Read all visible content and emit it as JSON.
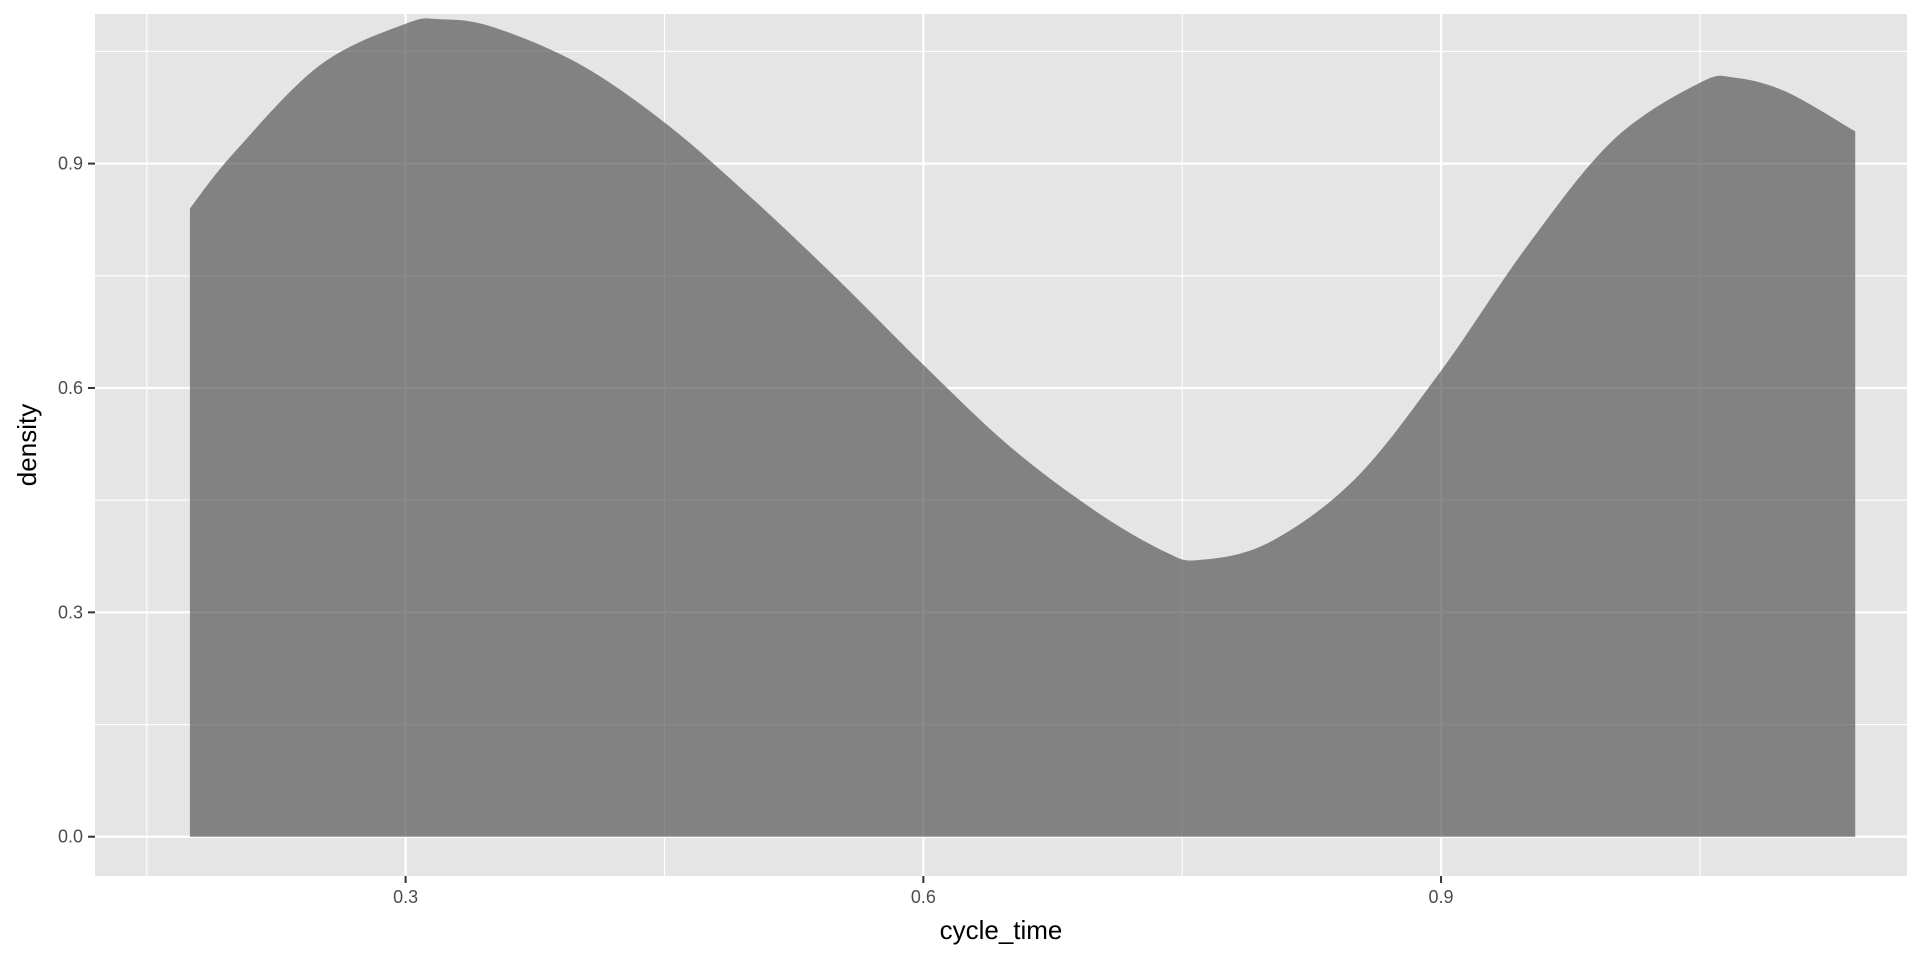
{
  "chart_data": {
    "type": "area",
    "geom": "density",
    "xlabel": "cycle_time",
    "ylabel": "density",
    "xlim": [
      0.12,
      1.17
    ],
    "ylim": [
      -0.0525,
      1.1
    ],
    "x_ticks": [
      0.3,
      0.6,
      0.9
    ],
    "x_tick_labels": [
      "0.3",
      "0.6",
      "0.9"
    ],
    "x_minor_ticks": [
      0.15,
      0.45,
      0.75,
      1.05
    ],
    "y_ticks": [
      0.0,
      0.3,
      0.6,
      0.9
    ],
    "y_tick_labels": [
      "0.0",
      "0.3",
      "0.6",
      "0.9"
    ],
    "y_minor_ticks": [
      0.15,
      0.45,
      0.75,
      1.05
    ],
    "grid": true,
    "colors": {
      "panel_background": "#e5e5e5",
      "grid_line": "#ffffff",
      "fill": "#595959",
      "fill_opacity": 0.7
    },
    "x": [
      0.175,
      0.2,
      0.25,
      0.3,
      0.32,
      0.35,
      0.4,
      0.45,
      0.5,
      0.55,
      0.6,
      0.65,
      0.7,
      0.74,
      0.76,
      0.8,
      0.85,
      0.9,
      0.95,
      1.0,
      1.05,
      1.07,
      1.1,
      1.14
    ],
    "y": [
      0.84,
      0.913,
      1.031,
      1.087,
      1.093,
      1.083,
      1.034,
      0.955,
      0.855,
      0.746,
      0.631,
      0.522,
      0.435,
      0.381,
      0.37,
      0.393,
      0.478,
      0.623,
      0.79,
      0.932,
      1.008,
      1.015,
      0.996,
      0.943
    ]
  }
}
